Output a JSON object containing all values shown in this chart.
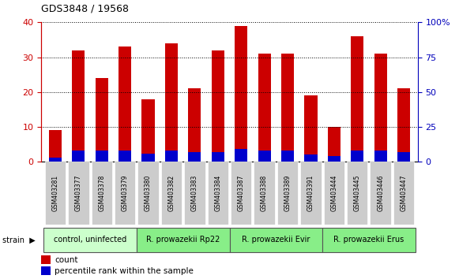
{
  "title": "GDS3848 / 19568",
  "samples": [
    "GSM403281",
    "GSM403377",
    "GSM403378",
    "GSM403379",
    "GSM403380",
    "GSM403382",
    "GSM403383",
    "GSM403384",
    "GSM403387",
    "GSM403388",
    "GSM403389",
    "GSM403391",
    "GSM403444",
    "GSM403445",
    "GSM403446",
    "GSM403447"
  ],
  "count_values": [
    9,
    32,
    24,
    33,
    18,
    34,
    21,
    32,
    39,
    31,
    31,
    19,
    10,
    36,
    31,
    21
  ],
  "percentile_values": [
    3,
    8,
    8,
    8,
    6,
    8,
    7,
    7,
    9,
    8,
    8,
    5,
    4,
    8,
    8,
    7
  ],
  "groups": [
    {
      "label": "control, uninfected",
      "start": 0,
      "end": 4,
      "color": "#ccffcc"
    },
    {
      "label": "R. prowazekii Rp22",
      "start": 4,
      "end": 8,
      "color": "#88ee88"
    },
    {
      "label": "R. prowazekii Evir",
      "start": 8,
      "end": 12,
      "color": "#88ee88"
    },
    {
      "label": "R. prowazekii Erus",
      "start": 12,
      "end": 16,
      "color": "#88ee88"
    }
  ],
  "left_ylim": [
    0,
    40
  ],
  "right_ylim": [
    0,
    100
  ],
  "left_yticks": [
    0,
    10,
    20,
    30,
    40
  ],
  "right_yticks": [
    0,
    25,
    50,
    75,
    100
  ],
  "right_yticklabels": [
    "0",
    "25",
    "50",
    "75",
    "100%"
  ],
  "bar_color_red": "#cc0000",
  "bar_color_blue": "#0000cc",
  "title_color": "#000000",
  "left_axis_color": "#cc0000",
  "right_axis_color": "#0000bb",
  "bar_width": 0.55,
  "legend_count_label": "count",
  "legend_percentile_label": "percentile rank within the sample",
  "strain_label": "strain",
  "tick_bg_color": "#cccccc",
  "group_control_color": "#ccffcc",
  "group_infected_color": "#88ee88",
  "bg_color": "#ffffff"
}
